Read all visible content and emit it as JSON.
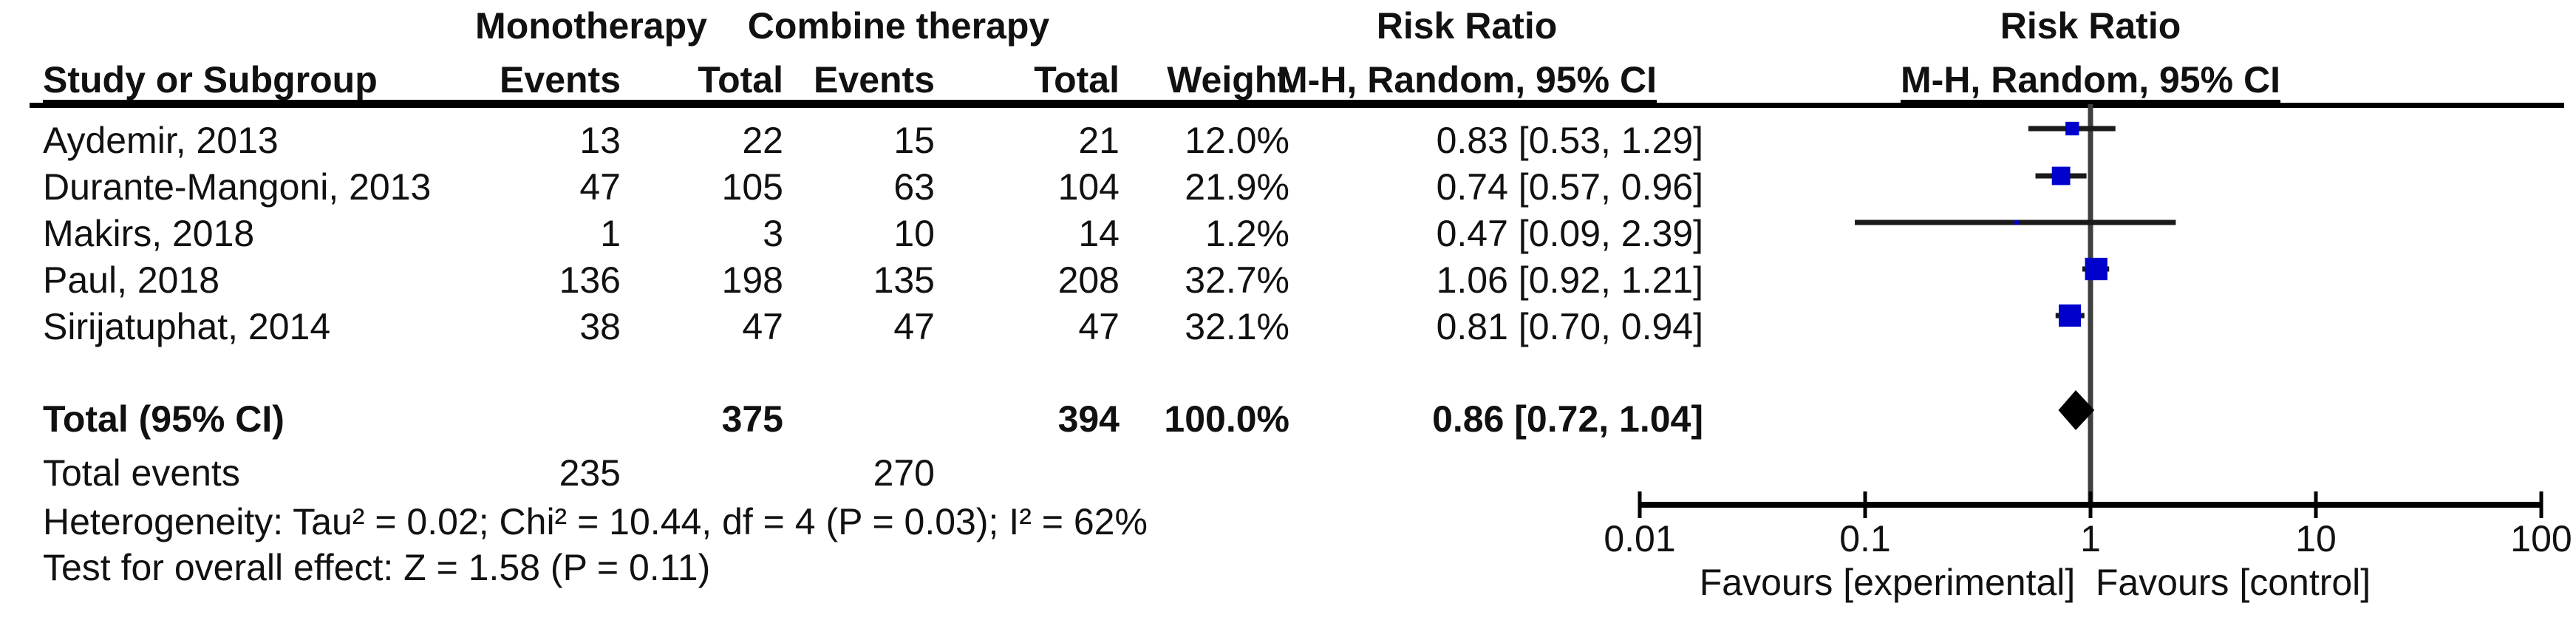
{
  "table": {
    "group_headers": {
      "monotherapy": "Monotherapy",
      "combine": "Combine therapy",
      "risk_ratio": "Risk Ratio"
    },
    "col_headers": {
      "study": "Study or Subgroup",
      "events1": "Events",
      "total1": "Total",
      "events2": "Events",
      "total2": "Total",
      "weight": "Weight",
      "mh": "M-H, Random, 95% CI"
    }
  },
  "plot": {
    "risk_ratio_header": "Risk Ratio",
    "mh_header": "M-H, Random, 95% CI"
  },
  "chart_data": {
    "type": "forest",
    "effect_measure": "Risk Ratio",
    "method": "M-H, Random, 95% CI",
    "x_scale": "log10",
    "xlim": [
      0.01,
      100
    ],
    "x_ticks": [
      0.01,
      0.1,
      1,
      10,
      100
    ],
    "x_tick_labels": [
      "0.01",
      "0.1",
      "1",
      "10",
      "100"
    ],
    "favours_left": "Favours [experimental]",
    "favours_right": "Favours [control]",
    "marker_color": "#0000cc",
    "studies": [
      {
        "name": "Aydemir, 2013",
        "events1": "13",
        "total1": "22",
        "events2": "15",
        "total2": "21",
        "weight": "12.0%",
        "weight_pct": 12.0,
        "rr": 0.83,
        "ci_low": 0.53,
        "ci_high": 1.29,
        "label": "0.83 [0.53, 1.29]"
      },
      {
        "name": "Durante-Mangoni, 2013",
        "events1": "47",
        "total1": "105",
        "events2": "63",
        "total2": "104",
        "weight": "21.9%",
        "weight_pct": 21.9,
        "rr": 0.74,
        "ci_low": 0.57,
        "ci_high": 0.96,
        "label": "0.74 [0.57, 0.96]"
      },
      {
        "name": "Makirs, 2018",
        "events1": "1",
        "total1": "3",
        "events2": "10",
        "total2": "14",
        "weight": "1.2%",
        "weight_pct": 1.2,
        "rr": 0.47,
        "ci_low": 0.09,
        "ci_high": 2.39,
        "label": "0.47 [0.09, 2.39]"
      },
      {
        "name": "Paul, 2018",
        "events1": "136",
        "total1": "198",
        "events2": "135",
        "total2": "208",
        "weight": "32.7%",
        "weight_pct": 32.7,
        "rr": 1.06,
        "ci_low": 0.92,
        "ci_high": 1.21,
        "label": "1.06 [0.92, 1.21]"
      },
      {
        "name": "Sirijatuphat, 2014",
        "events1": "38",
        "total1": "47",
        "events2": "47",
        "total2": "47",
        "weight": "32.1%",
        "weight_pct": 32.1,
        "rr": 0.81,
        "ci_low": 0.7,
        "ci_high": 0.94,
        "label": "0.81 [0.70, 0.94]"
      }
    ],
    "total": {
      "name": "Total (95% CI)",
      "total1": "375",
      "total2": "394",
      "weight": "100.0%",
      "rr": 0.86,
      "ci_low": 0.72,
      "ci_high": 1.04,
      "label": "0.86 [0.72, 1.04]"
    },
    "total_events": {
      "label": "Total events",
      "events1": "235",
      "events2": "270"
    },
    "heterogeneity": "Heterogeneity: Tau² = 0.02; Chi² = 10.44, df = 4 (P = 0.03); I² = 62%",
    "overall_effect": "Test for overall effect: Z = 1.58 (P = 0.11)"
  }
}
